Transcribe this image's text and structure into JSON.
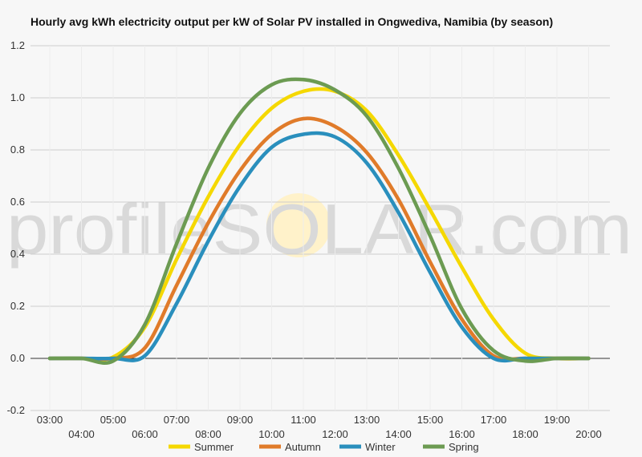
{
  "chart_data": {
    "type": "line",
    "title": "Hourly avg kWh electricity output per kW of Solar PV installed in Ongwediva, Namibia (by season)",
    "xlabel": "",
    "ylabel": "",
    "ylim": [
      -0.2,
      1.2
    ],
    "yticks": [
      "-0.2",
      "0.0",
      "0.2",
      "0.4",
      "0.6",
      "0.8",
      "1.0",
      "1.2"
    ],
    "categories": [
      "03:00",
      "04:00",
      "05:00",
      "06:00",
      "07:00",
      "08:00",
      "09:00",
      "10:00",
      "11:00",
      "12:00",
      "13:00",
      "14:00",
      "15:00",
      "16:00",
      "17:00",
      "18:00",
      "19:00",
      "20:00"
    ],
    "series": [
      {
        "name": "Summer",
        "color": "#f5d800",
        "values": [
          0.0,
          0.0,
          0.005,
          0.12,
          0.38,
          0.62,
          0.82,
          0.96,
          1.025,
          1.025,
          0.95,
          0.78,
          0.57,
          0.35,
          0.15,
          0.02,
          0.0,
          0.0
        ]
      },
      {
        "name": "Autumn",
        "color": "#e07b2a",
        "values": [
          0.0,
          0.0,
          0.0,
          0.04,
          0.28,
          0.52,
          0.72,
          0.86,
          0.92,
          0.89,
          0.79,
          0.61,
          0.37,
          0.15,
          0.01,
          0.0,
          0.0,
          0.0
        ]
      },
      {
        "name": "Winter",
        "color": "#2a8fbd",
        "values": [
          0.0,
          0.0,
          0.0,
          0.01,
          0.21,
          0.45,
          0.66,
          0.81,
          0.86,
          0.85,
          0.75,
          0.56,
          0.33,
          0.12,
          0.0,
          0.0,
          0.0,
          0.0
        ]
      },
      {
        "name": "Spring",
        "color": "#6c9b52",
        "values": [
          0.0,
          0.0,
          -0.01,
          0.13,
          0.44,
          0.73,
          0.94,
          1.05,
          1.07,
          1.03,
          0.93,
          0.73,
          0.47,
          0.19,
          0.03,
          -0.01,
          0.0,
          0.0
        ]
      }
    ],
    "grid": true,
    "legend": "bottom",
    "watermark": "profileSOLAR.com"
  }
}
